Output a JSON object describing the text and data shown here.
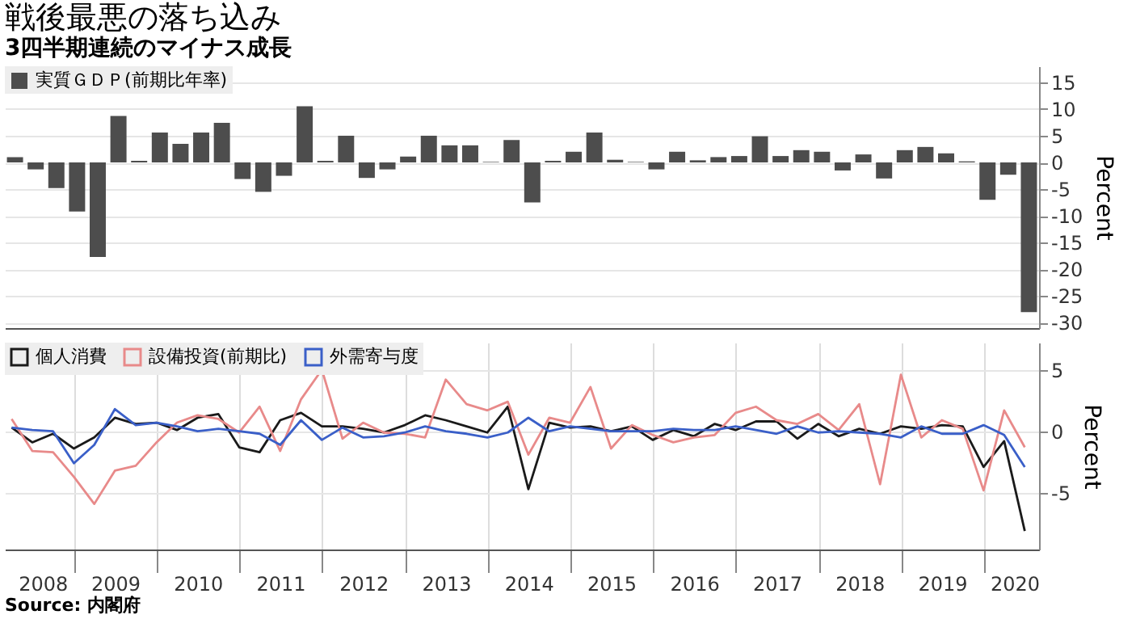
{
  "chart_data": [
    {
      "type": "bar",
      "title": "戦後最悪の落ち込み",
      "subtitle": "3四半期連続のマイナス成長",
      "ylabel": "Percent",
      "categories": [
        null,
        null,
        null,
        null,
        null,
        null,
        null,
        null,
        null,
        null,
        null,
        null,
        null,
        null,
        null,
        null,
        null,
        null,
        null,
        null,
        null,
        null,
        null,
        null,
        null,
        null,
        null,
        null,
        null,
        null,
        null,
        null,
        null,
        null,
        null,
        null,
        null,
        null,
        null,
        null,
        null,
        null,
        null,
        null,
        null,
        null,
        null,
        null,
        null,
        null
      ],
      "ylim": [
        -31,
        18
      ],
      "yticks": [
        -30,
        -25,
        -20,
        -15,
        -10,
        -5,
        0,
        5,
        10,
        15
      ],
      "series": [
        {
          "name": "実質ＧＤＰ(前期比年率)",
          "color": "#4d4d4d",
          "values": [
            1.0,
            -1.3,
            -4.8,
            -9.2,
            -17.7,
            8.7,
            0.3,
            5.6,
            3.5,
            5.6,
            7.4,
            -3.1,
            -5.5,
            -2.5,
            10.5,
            0.3,
            5.0,
            -2.9,
            -1.3,
            1.1,
            5.0,
            3.2,
            3.2,
            0.1,
            4.2,
            -7.5,
            0.3,
            2.0,
            5.6,
            0.5,
            0.1,
            -1.3,
            2.0,
            0.4,
            1.0,
            1.2,
            4.9,
            1.2,
            2.3,
            2.0,
            -1.5,
            1.5,
            -3.0,
            2.3,
            2.9,
            1.7,
            0.2,
            -7.0,
            -2.3,
            -28.0
          ]
        }
      ],
      "legend": "top left",
      "grid": "y",
      "tick_labels": "y"
    },
    {
      "type": "line",
      "ylabel": "Percent",
      "annotations": [
        "Source: 内閣府"
      ],
      "x": [
        "2008-03-31",
        "2008-06-30",
        "2008-09-30",
        "2008-12-31",
        "2009-03-31",
        "2009-06-30",
        "2009-09-30",
        "2009-12-31",
        "2010-03-31",
        "2010-06-30",
        "2010-09-30",
        "2010-12-31",
        "2011-03-31",
        "2011-06-30",
        "2011-09-30",
        "2011-12-31",
        "2012-03-31",
        "2012-06-30",
        "2012-09-30",
        "2012-12-31",
        "2013-03-31",
        "2013-06-30",
        "2013-09-30",
        "2013-12-31",
        "2014-03-31",
        "2014-06-30",
        "2014-09-30",
        "2014-12-31",
        "2015-03-31",
        "2015-06-30",
        "2015-09-30",
        "2015-12-31",
        "2016-03-31",
        "2016-06-30",
        "2016-09-30",
        "2016-12-31",
        "2017-03-31",
        "2017-06-30",
        "2017-09-30",
        "2017-12-31",
        "2018-03-31",
        "2018-06-30",
        "2018-09-30",
        "2018-12-31",
        "2019-03-31",
        "2019-06-30",
        "2019-09-30",
        "2019-12-31",
        "2020-03-31",
        "2020-06-30"
      ],
      "xlim": [
        "2008-03-01",
        "2020-09-01"
      ],
      "xticks": [
        {
          "value": "2008-08-15",
          "label": "2008"
        },
        {
          "value": "2009-01-01",
          "label": null
        },
        {
          "value": "2009-07-01",
          "label": "2009"
        },
        {
          "value": "2010-01-01",
          "label": null
        },
        {
          "value": "2010-07-01",
          "label": "2010"
        },
        {
          "value": "2011-01-01",
          "label": null
        },
        {
          "value": "2011-07-01",
          "label": "2011"
        },
        {
          "value": "2012-01-01",
          "label": null
        },
        {
          "value": "2012-07-01",
          "label": "2012"
        },
        {
          "value": "2013-01-01",
          "label": null
        },
        {
          "value": "2013-07-01",
          "label": "2013"
        },
        {
          "value": "2014-01-01",
          "label": null
        },
        {
          "value": "2014-07-01",
          "label": "2014"
        },
        {
          "value": "2015-01-01",
          "label": null
        },
        {
          "value": "2015-07-01",
          "label": "2015"
        },
        {
          "value": "2016-01-01",
          "label": null
        },
        {
          "value": "2016-07-01",
          "label": "2016"
        },
        {
          "value": "2017-01-01",
          "label": null
        },
        {
          "value": "2017-07-01",
          "label": "2017"
        },
        {
          "value": "2018-01-01",
          "label": null
        },
        {
          "value": "2018-07-01",
          "label": "2018"
        },
        {
          "value": "2019-01-01",
          "label": null
        },
        {
          "value": "2019-07-01",
          "label": "2019"
        },
        {
          "value": "2020-01-01",
          "label": null
        },
        {
          "value": "2020-05-15",
          "label": "2020"
        }
      ],
      "ylim": [
        -9.6,
        7.2
      ],
      "yticks": [
        -5,
        0,
        5
      ],
      "series": [
        {
          "name": "個人消費",
          "color": "#1a1a1a",
          "values": [
            0.3,
            -0.9,
            -0.2,
            -1.4,
            -0.5,
            1.1,
            0.6,
            0.7,
            0.1,
            1.1,
            1.4,
            -1.3,
            -1.7,
            0.9,
            1.5,
            0.4,
            0.4,
            0.2,
            -0.1,
            0.5,
            1.3,
            0.9,
            0.4,
            -0.1,
            2.0,
            -4.7,
            0.7,
            0.3,
            0.4,
            0.0,
            0.4,
            -0.7,
            0.1,
            -0.4,
            0.6,
            0.1,
            0.8,
            0.8,
            -0.6,
            0.6,
            -0.4,
            0.2,
            -0.2,
            0.4,
            0.2,
            0.5,
            0.4,
            -2.9,
            -0.8,
            -8.1
          ]
        },
        {
          "name": "設備投資(前期比)",
          "color": "#e88a8a",
          "values": [
            1.0,
            -1.6,
            -1.7,
            -3.7,
            -5.9,
            -3.2,
            -2.8,
            -0.9,
            0.7,
            1.3,
            1.0,
            -0.1,
            2.0,
            -1.6,
            2.6,
            5.0,
            -0.6,
            0.7,
            -0.1,
            -0.2,
            -0.5,
            4.2,
            2.2,
            1.7,
            2.4,
            -1.9,
            1.1,
            0.7,
            3.6,
            -1.4,
            0.5,
            -0.3,
            -0.9,
            -0.5,
            -0.3,
            1.5,
            2.0,
            0.9,
            0.6,
            1.4,
            0.1,
            2.2,
            -4.3,
            4.6,
            -0.5,
            0.9,
            0.2,
            -4.8,
            1.7,
            -1.3
          ]
        },
        {
          "name": "外需寄与度",
          "color": "#3a5fc8",
          "values": [
            0.3,
            0.1,
            0.0,
            -2.6,
            -1.1,
            1.8,
            0.5,
            0.7,
            0.4,
            0.0,
            0.2,
            0.0,
            -0.2,
            -1.1,
            0.9,
            -0.7,
            0.3,
            -0.5,
            -0.4,
            -0.1,
            0.4,
            0.0,
            -0.2,
            -0.5,
            -0.1,
            1.1,
            0.0,
            0.4,
            0.2,
            0.0,
            0.0,
            0.0,
            0.2,
            0.1,
            0.1,
            0.4,
            0.1,
            -0.2,
            0.4,
            -0.1,
            0.0,
            -0.1,
            -0.2,
            -0.5,
            0.4,
            -0.2,
            -0.2,
            0.5,
            -0.3,
            -2.9
          ]
        }
      ],
      "legend": "top left",
      "grid": true
    }
  ]
}
